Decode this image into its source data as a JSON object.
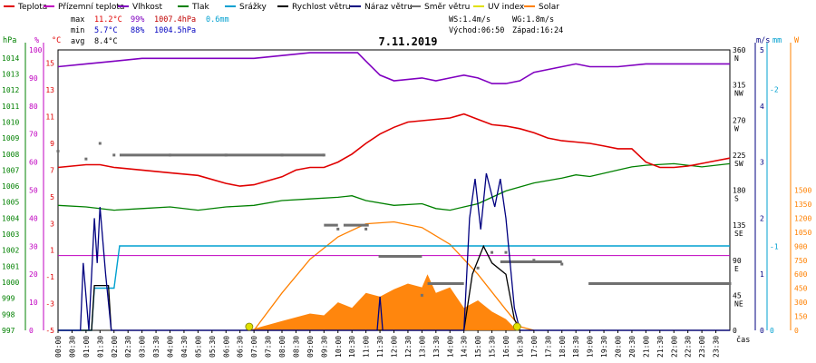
{
  "chart_data": {
    "type": "line",
    "title": "7.11.2019",
    "legend": [
      {
        "name": "Teplota",
        "color": "#e00000"
      },
      {
        "name": "Přízemní teplota",
        "color": "#c000c0"
      },
      {
        "name": "Vlhkost",
        "color": "#8000c0"
      },
      {
        "name": "Tlak",
        "color": "#008000"
      },
      {
        "name": "Srážky",
        "color": "#00a0d0"
      },
      {
        "name": "Rychlost větru",
        "color": "#000000"
      },
      {
        "name": "Náraz větru",
        "color": "#000080"
      },
      {
        "name": "Směr větru",
        "color": "#707070"
      },
      {
        "name": "UV index",
        "color": "#e0e000"
      },
      {
        "name": "Solar",
        "color": "#ff8000"
      }
    ],
    "stats": {
      "max_label": "max",
      "max_temp": "11.2°C",
      "max_hum": "99%",
      "max_press": "1007.4hPa",
      "rain": "0.6mm",
      "min_label": "min",
      "min_temp": "5.7°C",
      "min_hum": "88%",
      "min_press": "1004.5hPa",
      "avg_label": "avg",
      "avg_temp": "8.4°C"
    },
    "info": {
      "ws": "WS:1.4m/s",
      "wg": "WG:1.8m/s",
      "sunrise": "Východ:06:50",
      "sunset": "Západ:16:24"
    },
    "axis_units": {
      "hpa": "hPa",
      "pct": "%",
      "degc": "°C",
      "ms": "m/s",
      "mm": "mm",
      "wm2": "W",
      "time": "čas"
    },
    "axes": {
      "hpa_ticks": [
        "1014",
        "1013",
        "1012",
        "1011",
        "1010",
        "1009",
        "1008",
        "1007",
        "1006",
        "1005",
        "1004",
        "1003",
        "1002",
        "1001",
        "1000",
        "999",
        "998",
        "997"
      ],
      "pct_ticks": [
        "100",
        "90",
        "80",
        "70",
        "60",
        "50",
        "40",
        "30",
        "20",
        "10",
        "0"
      ],
      "degc_ticks": [
        "15",
        "13",
        "11",
        "9",
        "7",
        "5",
        "3",
        "1",
        "-1",
        "-3",
        "-5"
      ],
      "dir_ticks": [
        "360\nN",
        "315\nNW",
        "270\nW",
        "225\nSW",
        "180\nS",
        "135\nSE",
        "90\nE",
        "45\nNE",
        "0"
      ],
      "ms_ticks": [
        "5",
        "4",
        "3",
        "2",
        "1",
        "0"
      ],
      "mm_ticks": [
        "-2",
        "-1",
        "0"
      ],
      "w_ticks": [
        "1500",
        "1350",
        "1200",
        "1050",
        "900",
        "750",
        "600",
        "450",
        "300",
        "150",
        "0"
      ],
      "time_ticks": [
        "00:00",
        "00:30",
        "01:00",
        "01:30",
        "02:00",
        "02:30",
        "03:00",
        "03:30",
        "04:00",
        "04:30",
        "05:00",
        "05:30",
        "06:00",
        "06:30",
        "07:00",
        "07:30",
        "08:00",
        "08:30",
        "09:00",
        "09:30",
        "10:00",
        "10:30",
        "11:00",
        "11:30",
        "12:00",
        "12:30",
        "13:00",
        "13:30",
        "14:00",
        "14:30",
        "15:00",
        "15:30",
        "16:00",
        "16:30",
        "17:00",
        "17:30",
        "18:00",
        "18:30",
        "19:00",
        "19:30",
        "20:00",
        "20:30",
        "21:00",
        "21:30",
        "22:00",
        "22:30",
        "23:00",
        "23:30"
      ]
    },
    "temp_ylim": [
      -5,
      16
    ],
    "hum_ylim": [
      0,
      100
    ],
    "press_ylim": [
      997,
      1014.5
    ],
    "ms_ylim": [
      0,
      5
    ],
    "dir_ylim": [
      0,
      360
    ],
    "w_ylim": [
      0,
      1500
    ],
    "x_range_hours": [
      0,
      24
    ],
    "series": [
      {
        "name": "Teplota",
        "color": "#e00000",
        "points": [
          [
            0,
            7.2
          ],
          [
            1,
            7.4
          ],
          [
            1.5,
            7.4
          ],
          [
            2,
            7.2
          ],
          [
            3,
            7.0
          ],
          [
            4,
            6.8
          ],
          [
            5,
            6.6
          ],
          [
            6,
            6.0
          ],
          [
            6.5,
            5.8
          ],
          [
            7,
            5.9
          ],
          [
            8,
            6.5
          ],
          [
            8.5,
            7.0
          ],
          [
            9,
            7.2
          ],
          [
            9.5,
            7.2
          ],
          [
            10,
            7.6
          ],
          [
            10.5,
            8.2
          ],
          [
            11,
            9.0
          ],
          [
            11.5,
            9.7
          ],
          [
            12,
            10.2
          ],
          [
            12.5,
            10.6
          ],
          [
            13,
            10.7
          ],
          [
            13.5,
            10.8
          ],
          [
            14,
            10.9
          ],
          [
            14.5,
            11.2
          ],
          [
            15,
            10.8
          ],
          [
            15.5,
            10.4
          ],
          [
            16,
            10.3
          ],
          [
            16.5,
            10.1
          ],
          [
            17,
            9.8
          ],
          [
            17.5,
            9.4
          ],
          [
            18,
            9.2
          ],
          [
            18.5,
            9.1
          ],
          [
            19,
            9.0
          ],
          [
            19.5,
            8.8
          ],
          [
            20,
            8.6
          ],
          [
            20.5,
            8.6
          ],
          [
            21,
            7.6
          ],
          [
            21.5,
            7.2
          ],
          [
            22,
            7.2
          ],
          [
            22.5,
            7.3
          ],
          [
            23,
            7.5
          ],
          [
            23.5,
            7.7
          ],
          [
            24,
            7.9
          ]
        ]
      },
      {
        "name": "Přízemní teplota",
        "color": "#c000c0",
        "points": [
          [
            0,
            0.6
          ],
          [
            24,
            0.6
          ]
        ]
      },
      {
        "name": "Vlhkost",
        "color": "#8000c0",
        "points": [
          [
            0,
            94
          ],
          [
            1,
            95
          ],
          [
            2,
            96
          ],
          [
            3,
            97
          ],
          [
            4,
            97
          ],
          [
            5,
            97
          ],
          [
            6,
            97
          ],
          [
            7,
            97
          ],
          [
            8,
            98
          ],
          [
            9,
            99
          ],
          [
            10,
            99
          ],
          [
            10.7,
            99
          ],
          [
            11,
            96
          ],
          [
            11.5,
            91
          ],
          [
            12,
            89
          ],
          [
            13,
            90
          ],
          [
            13.5,
            89
          ],
          [
            14,
            90
          ],
          [
            14.5,
            91
          ],
          [
            15,
            90
          ],
          [
            15.5,
            88
          ],
          [
            16,
            88
          ],
          [
            16.5,
            89
          ],
          [
            17,
            92
          ],
          [
            17.5,
            93
          ],
          [
            18,
            94
          ],
          [
            18.5,
            95
          ],
          [
            19,
            94
          ],
          [
            20,
            94
          ],
          [
            21,
            95
          ],
          [
            22,
            95
          ],
          [
            23,
            95
          ],
          [
            24,
            95
          ]
        ]
      },
      {
        "name": "Tlak",
        "color": "#008000",
        "points": [
          [
            0,
            1004.8
          ],
          [
            1,
            1004.7
          ],
          [
            2,
            1004.5
          ],
          [
            3,
            1004.6
          ],
          [
            4,
            1004.7
          ],
          [
            5,
            1004.5
          ],
          [
            6,
            1004.7
          ],
          [
            7,
            1004.8
          ],
          [
            8,
            1005.1
          ],
          [
            9,
            1005.2
          ],
          [
            10,
            1005.3
          ],
          [
            10.5,
            1005.4
          ],
          [
            11,
            1005.1
          ],
          [
            12,
            1004.8
          ],
          [
            13,
            1004.9
          ],
          [
            13.5,
            1004.6
          ],
          [
            14,
            1004.5
          ],
          [
            14.5,
            1004.7
          ],
          [
            15,
            1004.9
          ],
          [
            15.5,
            1005.3
          ],
          [
            16,
            1005.7
          ],
          [
            17,
            1006.2
          ],
          [
            18,
            1006.5
          ],
          [
            18.5,
            1006.7
          ],
          [
            19,
            1006.6
          ],
          [
            20,
            1007.0
          ],
          [
            20.5,
            1007.2
          ],
          [
            21,
            1007.3
          ],
          [
            22,
            1007.4
          ],
          [
            23,
            1007.2
          ],
          [
            24,
            1007.4
          ]
        ]
      },
      {
        "name": "Srážky",
        "color": "#00a0d0",
        "points": [
          [
            0,
            0
          ],
          [
            1.2,
            0
          ],
          [
            1.3,
            0.3
          ],
          [
            2,
            0.3
          ],
          [
            2.2,
            0.6
          ],
          [
            24,
            0.6
          ]
        ]
      },
      {
        "name": "Rychlost větru",
        "color": "#000000",
        "points": [
          [
            0,
            0
          ],
          [
            1.2,
            0
          ],
          [
            1.3,
            0.8
          ],
          [
            1.8,
            0.8
          ],
          [
            1.9,
            0
          ],
          [
            14.5,
            0
          ],
          [
            14.8,
            1.0
          ],
          [
            15.2,
            1.5
          ],
          [
            15.5,
            1.2
          ],
          [
            16,
            1.0
          ],
          [
            16.3,
            0.2
          ],
          [
            16.5,
            0
          ],
          [
            24,
            0
          ]
        ]
      },
      {
        "name": "Náraz větru",
        "color": "#000080",
        "points": [
          [
            0,
            0
          ],
          [
            0.8,
            0
          ],
          [
            0.9,
            1.2
          ],
          [
            1.1,
            0
          ],
          [
            1.3,
            2.0
          ],
          [
            1.4,
            1.2
          ],
          [
            1.5,
            2.2
          ],
          [
            1.7,
            1.0
          ],
          [
            1.9,
            0
          ],
          [
            11.4,
            0
          ],
          [
            11.5,
            0.6
          ],
          [
            11.6,
            0
          ],
          [
            14.5,
            0
          ],
          [
            14.7,
            2.0
          ],
          [
            14.9,
            2.7
          ],
          [
            15.1,
            1.8
          ],
          [
            15.3,
            2.8
          ],
          [
            15.6,
            2.2
          ],
          [
            15.8,
            2.7
          ],
          [
            16,
            2.0
          ],
          [
            16.3,
            0.4
          ],
          [
            16.5,
            0
          ],
          [
            24,
            0
          ]
        ]
      },
      {
        "name": "Solar",
        "color": "#ff8000",
        "points": [
          [
            6.8,
            0
          ],
          [
            8,
            50
          ],
          [
            9,
            90
          ],
          [
            9.5,
            80
          ],
          [
            10,
            150
          ],
          [
            10.5,
            120
          ],
          [
            11,
            200
          ],
          [
            11.5,
            180
          ],
          [
            12,
            220
          ],
          [
            12.5,
            250
          ],
          [
            13,
            230
          ],
          [
            13.2,
            300
          ],
          [
            13.5,
            200
          ],
          [
            14,
            230
          ],
          [
            14.5,
            120
          ],
          [
            15,
            160
          ],
          [
            15.5,
            100
          ],
          [
            16,
            60
          ],
          [
            16.4,
            0
          ]
        ]
      },
      {
        "name": "Solar-max",
        "color": "#ff8000",
        "points": [
          [
            7,
            0
          ],
          [
            8,
            200
          ],
          [
            9,
            380
          ],
          [
            10,
            500
          ],
          [
            11,
            570
          ],
          [
            12,
            580
          ],
          [
            13,
            550
          ],
          [
            14,
            460
          ],
          [
            15,
            300
          ],
          [
            16,
            110
          ],
          [
            16.5,
            20
          ],
          [
            17,
            0
          ]
        ]
      }
    ],
    "direction_points": [
      [
        0,
        230
      ],
      [
        1,
        220
      ],
      [
        1.5,
        240
      ],
      [
        2,
        225
      ],
      [
        4,
        225
      ],
      [
        6,
        225
      ],
      [
        8,
        225
      ],
      [
        9.5,
        225
      ],
      [
        10,
        130
      ],
      [
        11,
        130
      ],
      [
        11.5,
        95
      ],
      [
        12.5,
        95
      ],
      [
        13,
        45
      ],
      [
        14,
        60
      ],
      [
        15,
        80
      ],
      [
        15.5,
        100
      ],
      [
        16,
        100
      ],
      [
        17,
        90
      ],
      [
        18,
        85
      ],
      [
        19,
        60
      ],
      [
        21,
        60
      ],
      [
        24,
        60
      ]
    ]
  }
}
